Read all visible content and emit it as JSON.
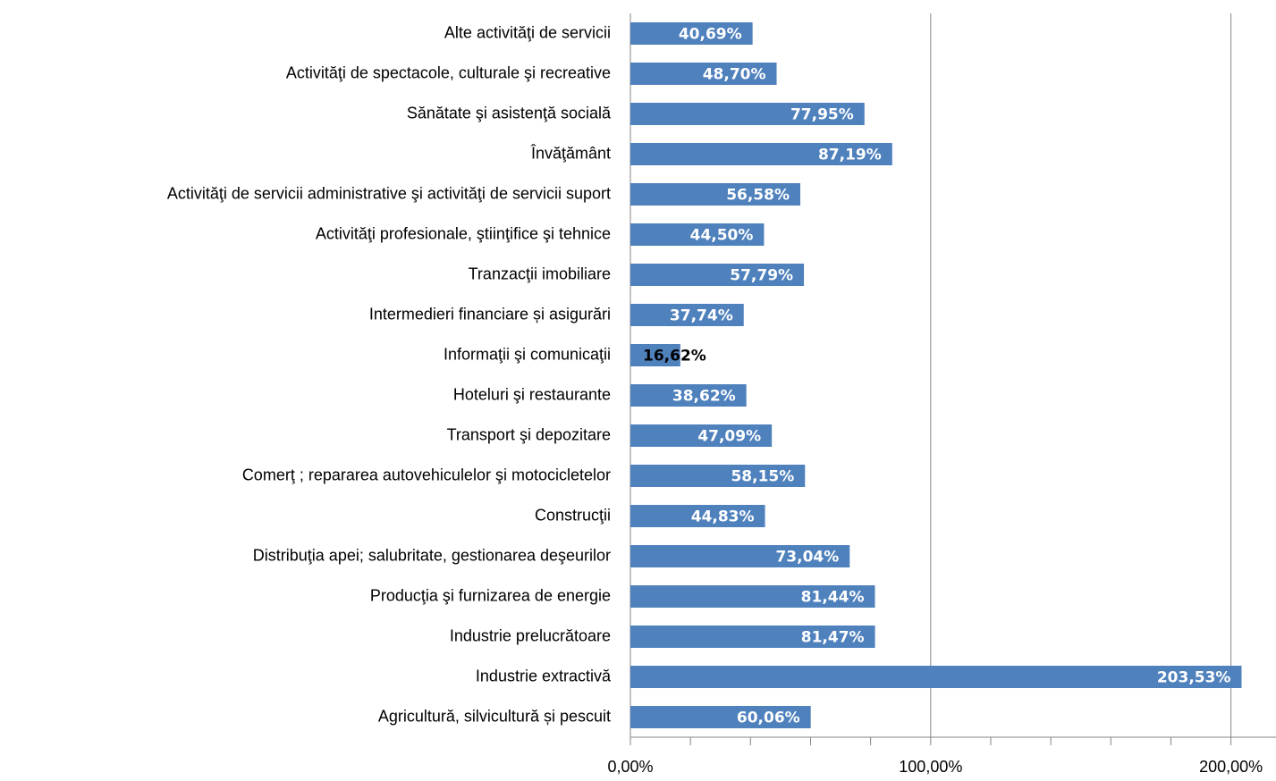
{
  "chart_data": {
    "type": "barh",
    "categories": [
      "Alte activităţi de servicii",
      "Activităţi de spectacole, culturale şi recreative",
      "Sănătate şi asistenţă socială",
      "Învăţământ",
      "Activităţi de servicii administrative şi activităţi de servicii suport",
      "Activităţi profesionale, ştiinţifice şi tehnice",
      "Tranzacţii imobiliare",
      "Intermedieri financiare și asigurări",
      "Informaţii şi comunicaţii",
      "Hoteluri şi restaurante",
      "Transport şi depozitare",
      "Comerţ ; repararea autovehiculelor şi motocicletelor",
      "Construcţii",
      "Distribuţia apei; salubritate, gestionarea deşeurilor",
      "Producţia şi furnizarea de energie",
      "Industrie prelucrătoare",
      "Industrie extractivă",
      "Agricultură, silvicultură și pescuit"
    ],
    "values": [
      40.69,
      48.7,
      77.95,
      87.19,
      56.58,
      44.5,
      57.79,
      37.74,
      16.62,
      38.62,
      47.09,
      58.15,
      44.83,
      73.04,
      81.44,
      81.47,
      203.53,
      60.06
    ],
    "value_labels": [
      "40,69%",
      "48,70%",
      "77,95%",
      "87,19%",
      "56,58%",
      "44,50%",
      "57,79%",
      "37,74%",
      "16,62%",
      "38,62%",
      "47,09%",
      "58,15%",
      "44,83%",
      "73,04%",
      "81,44%",
      "81,47%",
      "203,53%",
      "60,06%"
    ],
    "color": "#4f81bd",
    "xlim": [
      0,
      215
    ],
    "xticks": [
      {
        "value": 0,
        "label": "0,00%"
      },
      {
        "value": 100,
        "label": "100,00%"
      },
      {
        "value": 200,
        "label": "200,00%"
      }
    ],
    "xminor_ticks": [
      20,
      40,
      60,
      80,
      120,
      140,
      160,
      180
    ],
    "grid": true
  }
}
